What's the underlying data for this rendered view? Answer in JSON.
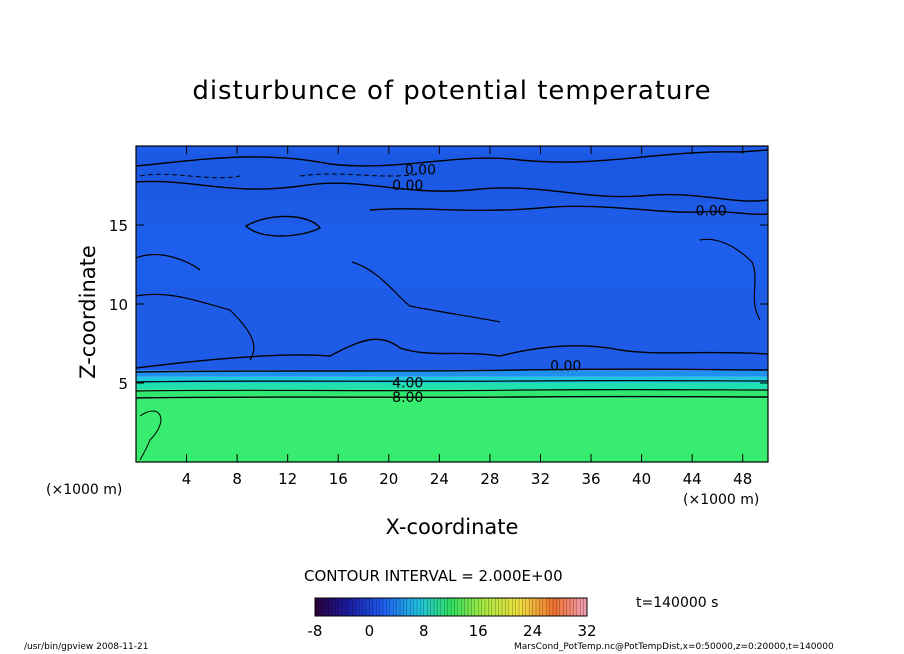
{
  "chart_data": {
    "type": "heatmap",
    "title": "disturbunce of potential temperature",
    "xlabel": "X-coordinate",
    "ylabel": "Z-coordinate",
    "x_unit_left": "(×1000 m)",
    "x_unit_right": "(×1000 m)",
    "xlim": [
      0,
      50
    ],
    "ylim": [
      0,
      20
    ],
    "x_ticks": [
      4,
      8,
      12,
      16,
      20,
      24,
      28,
      32,
      36,
      40,
      44,
      48
    ],
    "y_ticks": [
      5,
      10,
      15
    ],
    "layers": [
      {
        "z": [
          0,
          4
        ],
        "value": 13
      },
      {
        "z": [
          4,
          4.6
        ],
        "value": 11
      },
      {
        "z": [
          4.6,
          5.0
        ],
        "value": 8
      },
      {
        "z": [
          5.0,
          5.4
        ],
        "value": 5
      },
      {
        "z": [
          5.4,
          5.8
        ],
        "value": 2
      },
      {
        "z": [
          5.8,
          20
        ],
        "value": -1
      }
    ],
    "contour_labels": [
      {
        "text": "0.00",
        "x": 22.5,
        "z": 18.2
      },
      {
        "text": "0.00",
        "x": 21.5,
        "z": 17.2
      },
      {
        "text": "0.00",
        "x": 45.5,
        "z": 15.6
      },
      {
        "text": "0.00",
        "x": 34.0,
        "z": 5.8
      },
      {
        "text": "4.00",
        "x": 21.5,
        "z": 4.7
      },
      {
        "text": "8.00",
        "x": 21.5,
        "z": 3.8
      }
    ],
    "contour_interval": "CONTOUR INTERVAL = 2.000E+00",
    "colorbar": {
      "min": -8,
      "max": 32,
      "ticks": [
        -8,
        0,
        8,
        16,
        24,
        32
      ]
    },
    "time": "t=140000 s"
  },
  "footer": {
    "left": "/usr/bin/gpview   2008-11-21",
    "right": "MarsCond_PotTemp.nc@PotTempDist,x=0:50000,z=0:20000,t=140000"
  }
}
